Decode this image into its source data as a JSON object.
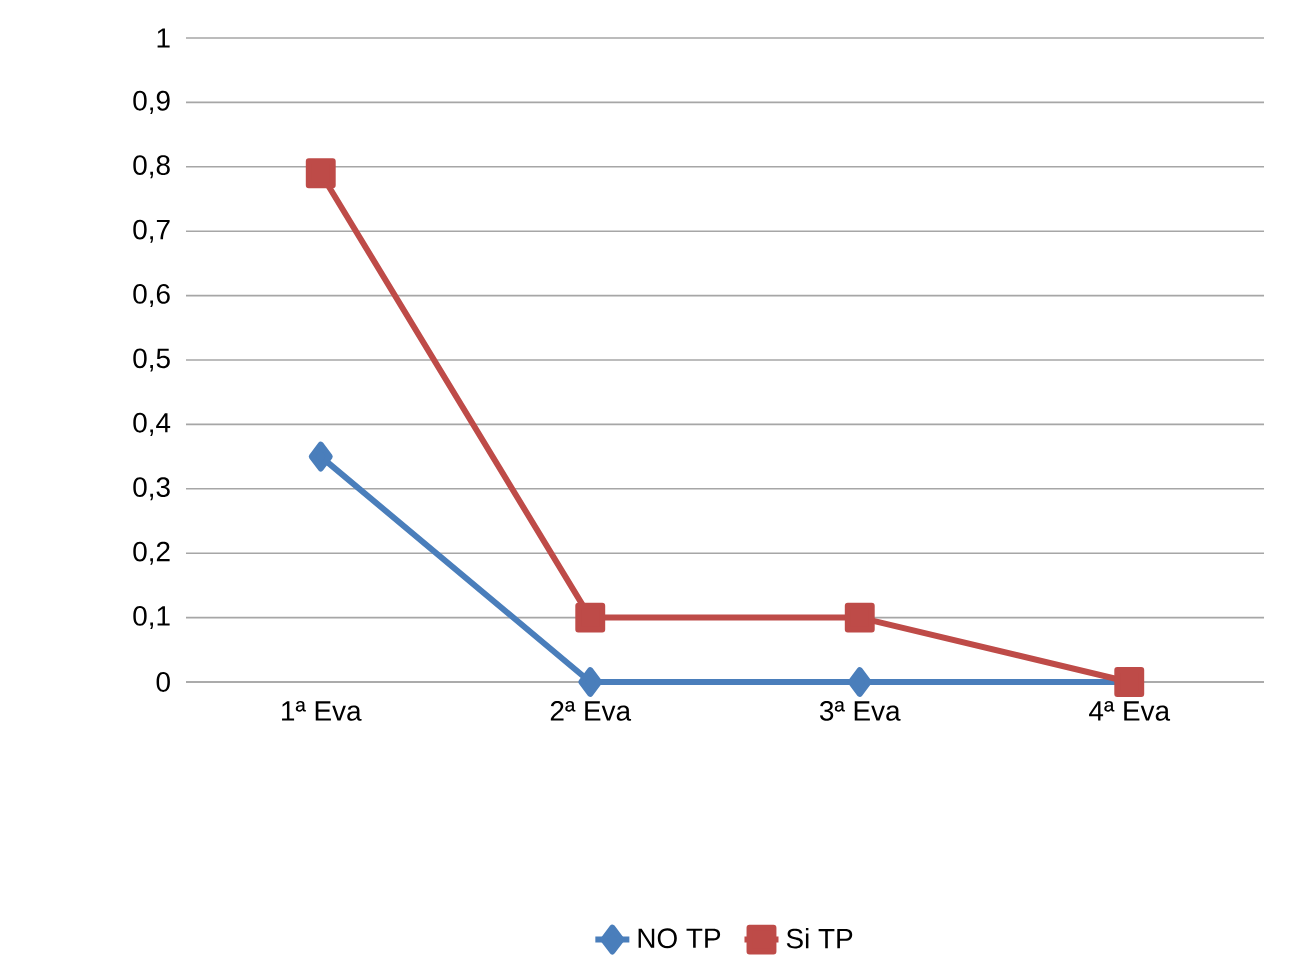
{
  "chart_data": {
    "type": "line",
    "categories": [
      "1ª Eva",
      "2ª Eva",
      "3ª Eva",
      "4ª Eva"
    ],
    "series": [
      {
        "name": "NO TP",
        "color": "#4a7ebb",
        "marker": "diamond",
        "values": [
          0.35,
          0,
          0,
          0
        ]
      },
      {
        "name": "Si TP",
        "color": "#be4b48",
        "marker": "square",
        "values": [
          0.79,
          0.1,
          0.1,
          0
        ]
      }
    ],
    "ylim": [
      0,
      1
    ],
    "yticks": [
      0,
      {
        "value": 0.1,
        "label": "0,1"
      },
      {
        "value": 0.2,
        "label": "0,2"
      },
      {
        "value": 0.3,
        "label": "0,3"
      },
      {
        "value": 0.4,
        "label": "0,4"
      },
      {
        "value": 0.5,
        "label": "0,5"
      },
      {
        "value": 0.6,
        "label": "0,6"
      },
      {
        "value": 0.7,
        "label": "0,7"
      },
      {
        "value": 0.8,
        "label": "0,8"
      },
      {
        "value": 0.9,
        "label": "0,9"
      },
      1
    ],
    "grid": "y",
    "legend": "bottom",
    "line_style": "solid"
  }
}
